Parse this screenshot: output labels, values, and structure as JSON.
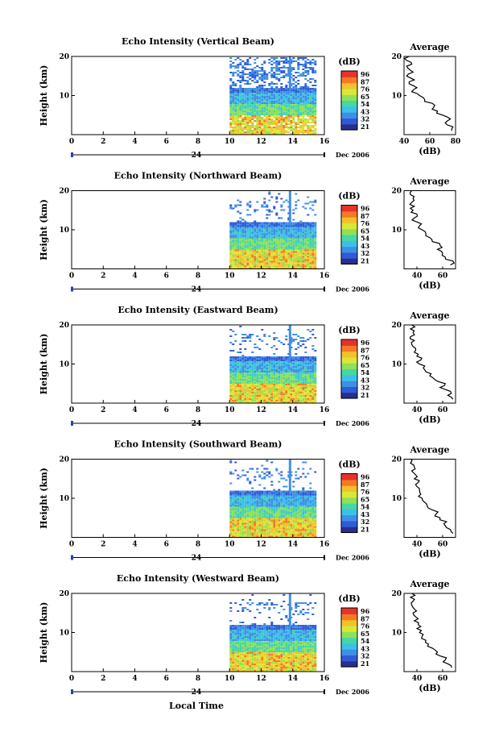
{
  "figure": {
    "x_axis_label": "Local Time",
    "date_label": "Dec 2006",
    "day_label": "24",
    "colorbar_unit": "(dB)",
    "colorbar_ticks": [
      "96",
      "87",
      "76",
      "65",
      "54",
      "43",
      "32",
      "21"
    ],
    "colormap": [
      "#2b2e8e",
      "#2f5bd6",
      "#3f8fe6",
      "#3cc0e8",
      "#47d6a6",
      "#8fe05a",
      "#d9e838",
      "#f3c12c",
      "#f57a25",
      "#e7322b"
    ],
    "average_title": "Average",
    "average_xlabel": "(dB)"
  },
  "chart_data": [
    {
      "type": "heatmap",
      "title": "Echo Intensity (Vertical Beam)",
      "ylabel": "Height (km)",
      "xlim": [
        0,
        16
      ],
      "ylim": [
        0,
        20
      ],
      "x_ticks": [
        "0",
        "2",
        "4",
        "6",
        "8",
        "10",
        "12",
        "14",
        "16"
      ],
      "y_ticks": [
        "10",
        "20"
      ],
      "data_time_range": [
        10,
        15.5
      ],
      "color_scale": [
        21,
        96
      ],
      "avg_profile": {
        "xlim": [
          40,
          80
        ],
        "x_ticks": [
          "40",
          "60",
          "80"
        ],
        "height_km": [
          1,
          2,
          3,
          4,
          5,
          6,
          7,
          8,
          9,
          10,
          11,
          12,
          13,
          14,
          15,
          16,
          17,
          18,
          19,
          20
        ],
        "db": [
          77,
          78,
          72,
          76,
          70,
          66,
          63,
          62,
          56,
          52,
          46,
          50,
          44,
          48,
          42,
          47,
          43,
          46,
          42,
          44
        ]
      }
    },
    {
      "type": "heatmap",
      "title": "Echo Intensity (Northward Beam)",
      "ylabel": "Height (km)",
      "xlim": [
        0,
        16
      ],
      "ylim": [
        0,
        20
      ],
      "x_ticks": [
        "0",
        "2",
        "4",
        "6",
        "8",
        "10",
        "12",
        "14",
        "16"
      ],
      "y_ticks": [
        "10",
        "20"
      ],
      "data_time_range": [
        10,
        15.5
      ],
      "color_scale": [
        21,
        96
      ],
      "avg_profile": {
        "xlim": [
          30,
          70
        ],
        "x_ticks": [
          "40",
          "60"
        ],
        "height_km": [
          1,
          2,
          3,
          4,
          5,
          6,
          7,
          8,
          9,
          10,
          11,
          12,
          13,
          14,
          15,
          16,
          17,
          18,
          19,
          20
        ],
        "db": [
          66,
          68,
          62,
          60,
          56,
          58,
          52,
          50,
          47,
          44,
          42,
          40,
          38,
          40,
          37,
          38,
          36,
          37,
          35,
          36
        ]
      }
    },
    {
      "type": "heatmap",
      "title": "Echo Intensity (Eastward Beam)",
      "ylabel": "Height (km)",
      "xlim": [
        0,
        16
      ],
      "ylim": [
        0,
        20
      ],
      "x_ticks": [
        "0",
        "2",
        "4",
        "6",
        "8",
        "10",
        "12",
        "14",
        "16"
      ],
      "y_ticks": [
        "10",
        "20"
      ],
      "data_time_range": [
        10,
        15.5
      ],
      "color_scale": [
        21,
        96
      ],
      "avg_profile": {
        "xlim": [
          30,
          70
        ],
        "x_ticks": [
          "40",
          "60"
        ],
        "height_km": [
          1,
          2,
          3,
          4,
          5,
          6,
          7,
          8,
          9,
          10,
          11,
          12,
          13,
          14,
          15,
          16,
          17,
          18,
          19,
          20
        ],
        "db": [
          68,
          64,
          66,
          58,
          62,
          54,
          50,
          47,
          45,
          42,
          43,
          40,
          38,
          39,
          36,
          38,
          35,
          37,
          35,
          36
        ]
      }
    },
    {
      "type": "heatmap",
      "title": "Echo Intensity (Southward Beam)",
      "ylabel": "Height (km)",
      "xlim": [
        0,
        16
      ],
      "ylim": [
        0,
        20
      ],
      "x_ticks": [
        "0",
        "2",
        "4",
        "6",
        "8",
        "10",
        "12",
        "14",
        "16"
      ],
      "y_ticks": [
        "10",
        "20"
      ],
      "data_time_range": [
        10,
        15.5
      ],
      "color_scale": [
        21,
        96
      ],
      "avg_profile": {
        "xlim": [
          30,
          70
        ],
        "x_ticks": [
          "40",
          "60"
        ],
        "height_km": [
          1,
          2,
          3,
          4,
          5,
          6,
          7,
          8,
          9,
          10,
          11,
          12,
          13,
          14,
          15,
          16,
          17,
          18,
          19,
          20
        ],
        "db": [
          68,
          66,
          62,
          63,
          58,
          55,
          52,
          48,
          46,
          44,
          43,
          42,
          40,
          41,
          38,
          39,
          36,
          38,
          35,
          36
        ]
      }
    },
    {
      "type": "heatmap",
      "title": "Echo Intensity (Westward Beam)",
      "ylabel": "Height (km)",
      "xlim": [
        0,
        16
      ],
      "ylim": [
        0,
        20
      ],
      "x_ticks": [
        "0",
        "2",
        "4",
        "6",
        "8",
        "10",
        "12",
        "14",
        "16"
      ],
      "y_ticks": [
        "10",
        "20"
      ],
      "data_time_range": [
        10,
        15.5
      ],
      "color_scale": [
        21,
        96
      ],
      "avg_profile": {
        "xlim": [
          30,
          70
        ],
        "x_ticks": [
          "40",
          "60"
        ],
        "height_km": [
          1,
          2,
          3,
          4,
          5,
          6,
          7,
          8,
          9,
          10,
          11,
          12,
          13,
          14,
          15,
          16,
          17,
          18,
          19,
          20
        ],
        "db": [
          67,
          64,
          62,
          58,
          56,
          52,
          49,
          47,
          44,
          42,
          40,
          41,
          38,
          39,
          37,
          38,
          36,
          37,
          35,
          36
        ]
      }
    }
  ]
}
